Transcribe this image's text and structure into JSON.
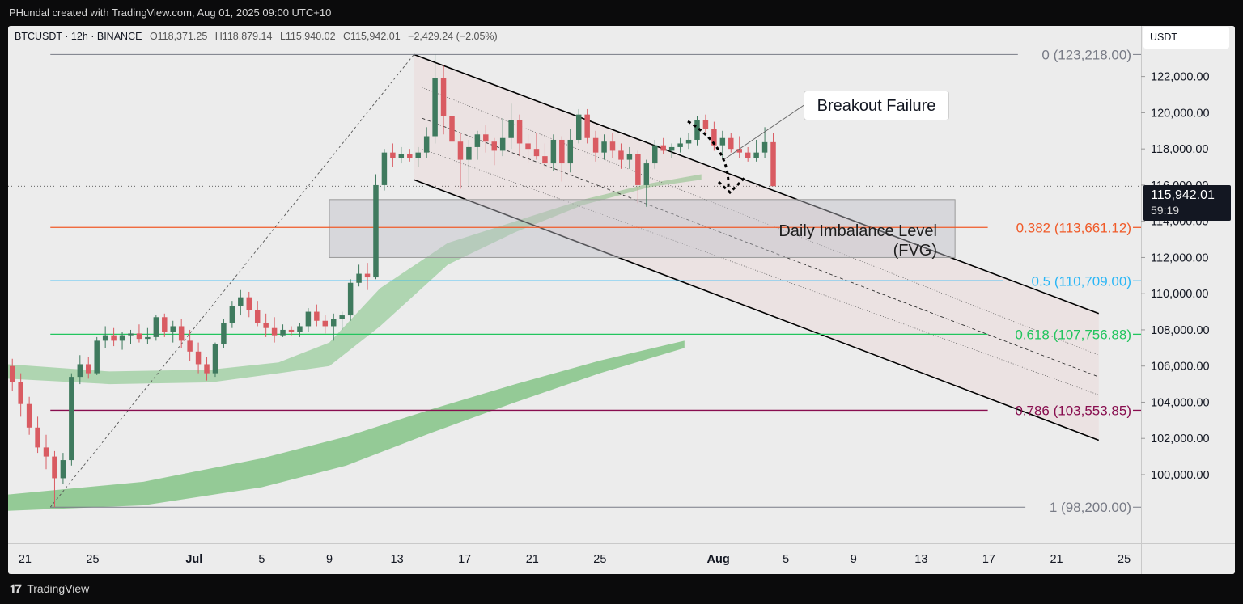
{
  "header": {
    "author_line": "PHundal created with TradingView.com, Aug 01, 2025 09:00 UTC+10"
  },
  "symbol": {
    "name": "BTCUSDT · 12h · BINANCE",
    "open": "O118,371.25",
    "high": "H118,879.14",
    "low": "L115,940.02",
    "close": "C115,942.01",
    "change": "−2,429.24 (−2.05%)"
  },
  "axis": {
    "unit": "USDT",
    "current_price": "115,942.01",
    "countdown": "59:19"
  },
  "annotations": {
    "callout": "Breakout Failure",
    "zone_line1": "Daily Imbalance Level",
    "zone_line2": "(FVG)"
  },
  "footer": {
    "brand": "TradingView",
    "logo": "tradingview-logo-icon"
  },
  "colors": {
    "bull": "#3f7a5e",
    "bear": "#d95b62",
    "fib_0": "#787b86",
    "fib_382": "#f05a28",
    "fib_5": "#29b6f6",
    "fib_618": "#22c55e",
    "fib_786": "#880e4f",
    "fib_1": "#787b86"
  },
  "chart_data": {
    "type": "candlestick",
    "title": "BTCUSDT · 12h · BINANCE",
    "y_range": [
      96200,
      124800
    ],
    "y_ticks": [
      100000,
      102000,
      104000,
      106000,
      108000,
      110000,
      112000,
      114000,
      116000,
      118000,
      120000,
      122000
    ],
    "y_tick_labels": [
      "100,000.00",
      "102,000.00",
      "104,000.00",
      "106,000.00",
      "108,000.00",
      "110,000.00",
      "112,000.00",
      "114,000.00",
      "116,000.00",
      "118,000.00",
      "120,000.00",
      "122,000.00"
    ],
    "x_range": [
      "2025-06-20",
      "2025-08-26"
    ],
    "x_ticks": [
      "2025-06-21",
      "2025-06-25",
      "2025-07-01",
      "2025-07-05",
      "2025-07-09",
      "2025-07-13",
      "2025-07-17",
      "2025-07-21",
      "2025-07-25",
      "2025-08-01",
      "2025-08-05",
      "2025-08-09",
      "2025-08-13",
      "2025-08-17",
      "2025-08-21",
      "2025-08-25"
    ],
    "x_tick_labels": [
      "21",
      "25",
      "Jul",
      "5",
      "9",
      "13",
      "17",
      "21",
      "25",
      "Aug",
      "5",
      "9",
      "13",
      "17",
      "21",
      "25"
    ],
    "candles_start": "2025-06-20 00:00",
    "candles_interval_hours": 12,
    "candles": [
      [
        106000,
        106400,
        104600,
        105100
      ],
      [
        105100,
        105600,
        103200,
        103900
      ],
      [
        103900,
        104300,
        102200,
        102600
      ],
      [
        102600,
        103200,
        101200,
        101500
      ],
      [
        101500,
        102200,
        100300,
        101000
      ],
      [
        101000,
        101300,
        98200,
        99800
      ],
      [
        99800,
        101200,
        99500,
        100800
      ],
      [
        100800,
        105600,
        100500,
        105400
      ],
      [
        105400,
        106600,
        105000,
        106100
      ],
      [
        106100,
        106500,
        105300,
        105600
      ],
      [
        105600,
        107600,
        105500,
        107400
      ],
      [
        107400,
        108200,
        107000,
        107700
      ],
      [
        107700,
        108100,
        107100,
        107400
      ],
      [
        107400,
        107900,
        106900,
        107700
      ],
      [
        107700,
        108000,
        107200,
        107800
      ],
      [
        107800,
        108300,
        107300,
        107500
      ],
      [
        107500,
        108100,
        107200,
        107600
      ],
      [
        107600,
        108800,
        107400,
        108700
      ],
      [
        108700,
        108900,
        107600,
        107900
      ],
      [
        107900,
        108500,
        107300,
        108200
      ],
      [
        108200,
        108600,
        107000,
        107400
      ],
      [
        107400,
        108000,
        106300,
        106800
      ],
      [
        106800,
        107300,
        105600,
        106100
      ],
      [
        106100,
        106500,
        105200,
        105600
      ],
      [
        105600,
        107300,
        105400,
        107200
      ],
      [
        107200,
        108600,
        107000,
        108400
      ],
      [
        108400,
        109600,
        108100,
        109300
      ],
      [
        109300,
        110200,
        108800,
        109800
      ],
      [
        109800,
        110100,
        108700,
        109100
      ],
      [
        109100,
        109600,
        108200,
        108400
      ],
      [
        108400,
        108900,
        107600,
        108100
      ],
      [
        108100,
        108700,
        107300,
        107700
      ],
      [
        107700,
        108300,
        107600,
        108000
      ],
      [
        108000,
        108200,
        107700,
        107900
      ],
      [
        107900,
        108400,
        107600,
        108200
      ],
      [
        108200,
        109200,
        107900,
        109000
      ],
      [
        109000,
        109400,
        108200,
        108500
      ],
      [
        108500,
        108800,
        107800,
        108200
      ],
      [
        108200,
        108900,
        107400,
        108600
      ],
      [
        108600,
        109000,
        108000,
        108800
      ],
      [
        108800,
        110800,
        108500,
        110600
      ],
      [
        110600,
        111600,
        110400,
        111100
      ],
      [
        111100,
        111700,
        110200,
        110900
      ],
      [
        110900,
        116600,
        110800,
        116000
      ],
      [
        116000,
        118000,
        115700,
        117800
      ],
      [
        117800,
        118300,
        117000,
        117500
      ],
      [
        117500,
        118100,
        117200,
        117700
      ],
      [
        117700,
        118000,
        117300,
        117500
      ],
      [
        117500,
        118100,
        117000,
        117800
      ],
      [
        117800,
        119200,
        117500,
        118700
      ],
      [
        118700,
        123218,
        118300,
        121900
      ],
      [
        121900,
        122600,
        118800,
        119800
      ],
      [
        119800,
        120100,
        118000,
        118400
      ],
      [
        118400,
        118900,
        115800,
        117400
      ],
      [
        117400,
        118500,
        116000,
        118100
      ],
      [
        118100,
        119000,
        117400,
        118800
      ],
      [
        118800,
        119300,
        117800,
        118400
      ],
      [
        118400,
        118600,
        117100,
        117900
      ],
      [
        117900,
        119700,
        117600,
        118600
      ],
      [
        118600,
        120500,
        118000,
        119600
      ],
      [
        119600,
        119900,
        117600,
        118300
      ],
      [
        118300,
        118800,
        117200,
        118000
      ],
      [
        118000,
        118900,
        117400,
        117600
      ],
      [
        117600,
        118300,
        116900,
        117200
      ],
      [
        117200,
        118800,
        116800,
        118500
      ],
      [
        118500,
        118700,
        116200,
        117200
      ],
      [
        117200,
        119100,
        116700,
        118500
      ],
      [
        118500,
        120200,
        118300,
        119900
      ],
      [
        119900,
        120200,
        118300,
        118600
      ],
      [
        118600,
        119000,
        117300,
        117800
      ],
      [
        117800,
        118800,
        117400,
        118400
      ],
      [
        118400,
        118900,
        117500,
        117900
      ],
      [
        117900,
        118300,
        116900,
        117400
      ],
      [
        117400,
        118100,
        116900,
        117700
      ],
      [
        117700,
        117900,
        115000,
        116000
      ],
      [
        116000,
        117400,
        114800,
        117200
      ],
      [
        117200,
        118500,
        116900,
        118200
      ],
      [
        118200,
        118600,
        117700,
        117900
      ],
      [
        117900,
        118300,
        117500,
        118100
      ],
      [
        118100,
        118600,
        117800,
        118300
      ],
      [
        118300,
        118900,
        118000,
        118500
      ],
      [
        118500,
        119800,
        118200,
        119600
      ],
      [
        119600,
        119900,
        118800,
        119100
      ],
      [
        119100,
        119500,
        117900,
        118200
      ],
      [
        118200,
        119000,
        117500,
        118600
      ],
      [
        118600,
        118900,
        117800,
        118000
      ],
      [
        118000,
        118700,
        117500,
        117800
      ],
      [
        117800,
        118100,
        117300,
        117500
      ],
      [
        117500,
        118500,
        117300,
        117800
      ],
      [
        117800,
        119200,
        117500,
        118371
      ],
      [
        118371,
        118879,
        115940,
        115942
      ]
    ]
  }
}
